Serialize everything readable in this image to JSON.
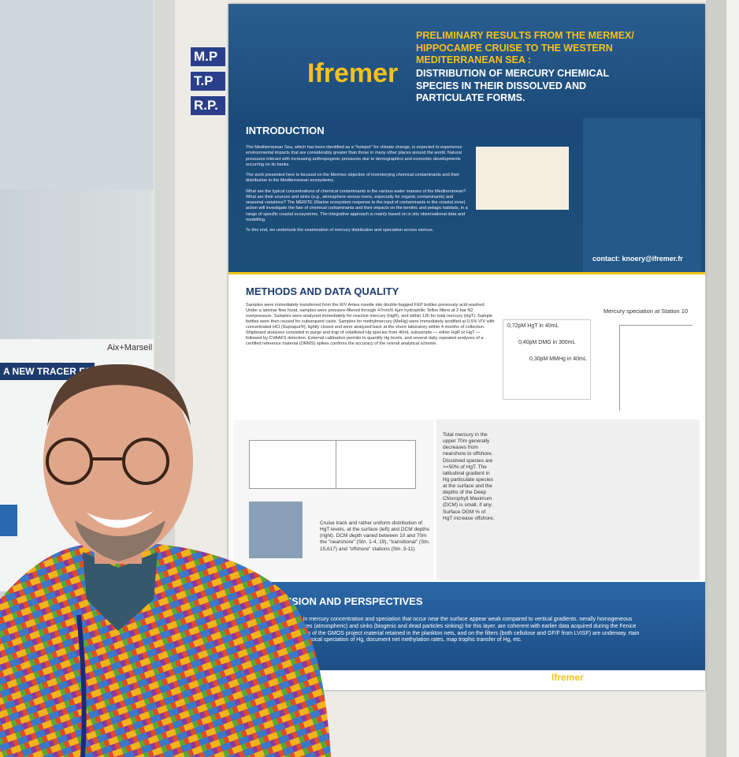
{
  "side_labels": [
    "M.P",
    "T.P",
    "R.P."
  ],
  "left_poster": {
    "banner": "A NEW TRACER FOR TH",
    "logo": "Aix+Marseil"
  },
  "poster": {
    "logo": "Ifremer",
    "title": "PRELIMINARY RESULTS FROM THE MERMEX/ HIPPOCAMPE CRUISE TO THE WESTERN MEDITERRANEAN SEA :",
    "subtitle": "DISTRIBUTION OF MERCURY CHEMICAL SPECIES IN THEIR DISSOLVED AND PARTICULATE FORMS.",
    "introduction": {
      "heading": "INTRODUCTION",
      "paragraphs": [
        "The Mediterranean Sea, which has been identified as a \"hotspot\" for climate change, is expected to experience environmental impacts that are considerably greater than those in many other places around the world. Natural pressures interact with increasing anthropogenic pressures due to demographics and economic developments occurring on its banks.",
        "The work presented here is focused on the Mermex objective of inventorying chemical contaminants and their distribution in the Mediterranean ecosystems.",
        "What are the typical concentrations of chemical contaminants in the various water masses of the Mediterranean? What are their sources and sinks (e.g., atmosphere versus rivers, especially for organic contaminants) and seasonal variations? The MERITE (Marine ecosystem response to the input of contaminants in the coastal zone) action will investigate the fate of chemical contaminants and their impacts on the benthic and pelagic habitats, in a range of specific coastal ecosystems. The integrative approach is mainly based on in situ observational data and modelling.",
        "To this end, we undertook the examination of mercury distribution and speciation across various."
      ]
    },
    "contact": "contact: knoery@ifremer.fr",
    "methods": {
      "heading": "METHODS AND DATA QUALITY",
      "text": "Samples were immediately transferred from the R/V Antea rosette into double-bagged FEP bottles previously acid-washed. Under a laminar flow hood, samples were pressure-filtered through 47mm/0.4µm hydrophilic Teflon filters at 2 bar N2 overpressure. Samples were analyzed immediately for reactive mercury (HgR), and within 12h for total mercury (HgT). Sample bottles were then reused for subsequent casts. Samples for methylmercury (MeHg) were immediately acidified at 0.5% V/V with concentrated HCl (Suprapur®), tightly closed and were analyzed back at the shore laboratory within 4 months of collection. Shipboard analyses consisted in purge and trap of volatilized Hg species from 40mL subsample — either HgR or HgT — followed by CVAAFS detection. External calibration permits to quantify Hg levels, and several daily repeated analyses of a certified reference material (ORMS) spikes confirms the accuracy of the overall analytical scheme.",
      "chart_title": "Mercury speciation at Station 10",
      "volumes": [
        "0,72pM HgT in 40mL",
        "0,40pM DMG in 300mL",
        "0,30pM MMHg in 40mL"
      ],
      "total_text": "Total mercury in the upper 70m generally decreases from nearshore to offshore. Dissolved species are >=50% of HgT. The latitudinal gradient in Hg particulate species at the surface and the depths of the Deep Chlorophyll Maximum (DCM) is small, if any. Surface DGM % of HgT increase offshore.",
      "map_text": "Cruise track and rather uniform distribution of HgT levels, at the surface (left) and DCM depths (right). DCM depth varied between 10 and 70m the \"nearshore\" (Stn. 1-4, 19), \"transitional\" (Stn. 15,617) and \"offshore\" stations (Stn. 9-11)"
    },
    "conclusion": {
      "heading": "NCLUSION AND PERSPECTIVES",
      "text": "ces in mercury concentration and speciation that occur near the surface appear weak compared to vertical gradients. nerally homogeneous sources (atmospheric) and sinks (biogenic and dead particles sinking) for this layer. are coherent with earlier data acquired during the Fenice cruises of the GMOS project material retained in the plankton nets, and on the filters (both cellulose and GF/F from LVISF) are underway. rtain the physical speciation of Hg, document net methylation rates, map trophic transfer of Hg, etc."
    },
    "footer_logo": "Ifremer"
  }
}
